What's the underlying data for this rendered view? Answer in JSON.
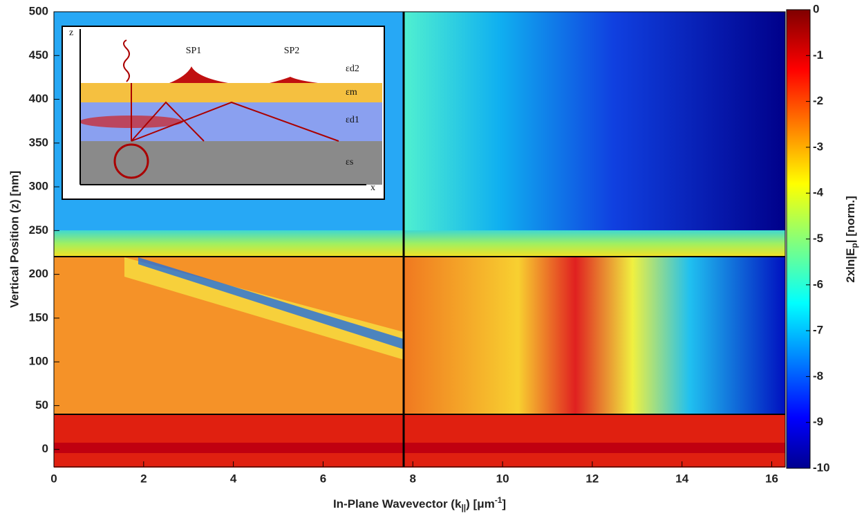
{
  "chart_data": {
    "type": "heatmap",
    "xlabel": [
      "In-Plane Wavevector (k",
      "||",
      ") [μm",
      "-1",
      "]"
    ],
    "ylabel": "Vertical Position (z) [nm]",
    "xlim": [
      0,
      16.3
    ],
    "xticks": [
      0,
      2,
      4,
      6,
      8,
      10,
      12,
      14,
      16
    ],
    "ylim": [
      -20,
      500
    ],
    "yticks": [
      0,
      50,
      100,
      150,
      200,
      250,
      300,
      350,
      400,
      450,
      500
    ],
    "colorbar": {
      "label": [
        "2xln|E",
        "p",
        "| [norm.]"
      ],
      "colormap": "jet",
      "clim": [
        -10,
        0
      ],
      "ticks": [
        0,
        -1,
        -2,
        -3,
        -4,
        -5,
        -6,
        -7,
        -8,
        -9,
        -10
      ]
    },
    "inset": {
      "axis_z": "z",
      "axis_x": "x",
      "sp1": "SP1",
      "sp2": "SP2",
      "layers": [
        "εd2",
        "εm",
        "εd1",
        "εs"
      ]
    }
  }
}
